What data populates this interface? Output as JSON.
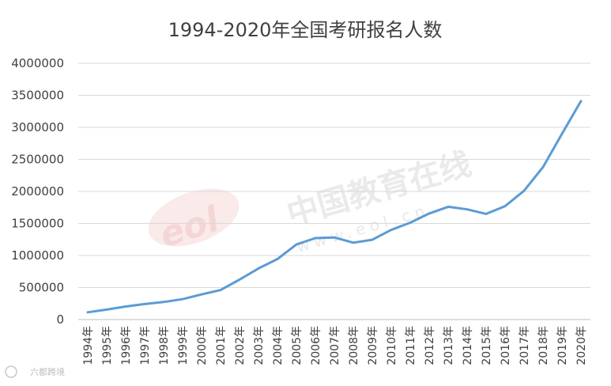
{
  "chart_data": {
    "type": "line",
    "title": "1994-2020年全国考研报名人数",
    "xlabel": "",
    "ylabel": "",
    "ylim": [
      0,
      4000000
    ],
    "yticks": [
      0,
      500000,
      1000000,
      1500000,
      2000000,
      2500000,
      3000000,
      3500000,
      4000000
    ],
    "grid": true,
    "legend": "none",
    "categories": [
      "1994年",
      "1995年",
      "1996年",
      "1997年",
      "1998年",
      "1999年",
      "2000年",
      "2001年",
      "2002年",
      "2003年",
      "2004年",
      "2005年",
      "2006年",
      "2007年",
      "2008年",
      "2009年",
      "2010年",
      "2011年",
      "2012年",
      "2013年",
      "2014年",
      "2015年",
      "2016年",
      "2017年",
      "2018年",
      "2019年",
      "2020年"
    ],
    "series": [
      {
        "values": [
          113000,
          155000,
          204000,
          242000,
          274000,
          319000,
          392000,
          460000,
          624000,
          797000,
          945000,
          1172000,
          1272000,
          1282000,
          1200000,
          1246000,
          1400000,
          1512000,
          1656000,
          1760000,
          1720000,
          1649000,
          1770000,
          2010000,
          2380000,
          2900000,
          3410000
        ],
        "color": "#5b9bd5"
      }
    ]
  },
  "watermark": {
    "site_name": "中国教育在线",
    "site_url": "www.eol.cn",
    "logo_text": "eol"
  },
  "corner_badge": {
    "text": "六都跨境"
  },
  "colors": {
    "line": "#5b9bd5",
    "grid": "#d9d9d9",
    "text": "#404040"
  }
}
